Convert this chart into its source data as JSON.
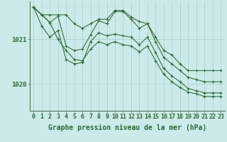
{
  "background_color": "#cceaea",
  "grid_color": "#aacccc",
  "line_color": "#2d6a2d",
  "marker_color": "#2d6a2d",
  "xlabel": "Graphe pression niveau de la mer (hPa)",
  "xlabel_fontsize": 7,
  "tick_fontsize": 6,
  "ytick_labels": [
    "1021",
    "1020"
  ],
  "ytick_values": [
    1021.0,
    1020.0
  ],
  "ylim": [
    1019.4,
    1021.85
  ],
  "xlim": [
    -0.5,
    23.5
  ],
  "xtick_values": [
    0,
    1,
    2,
    3,
    4,
    5,
    6,
    7,
    8,
    9,
    10,
    11,
    12,
    13,
    14,
    15,
    16,
    17,
    18,
    19,
    20,
    21,
    22,
    23
  ],
  "series": [
    [
      1021.72,
      1021.55,
      1021.55,
      1021.55,
      1021.55,
      1021.35,
      1021.25,
      1021.35,
      1021.45,
      1021.45,
      1021.65,
      1021.65,
      1021.5,
      1021.4,
      1021.35,
      1021.05,
      1020.75,
      1020.65,
      1020.45,
      1020.3,
      1020.3,
      1020.3,
      1020.3,
      1020.3
    ],
    [
      1021.72,
      1021.55,
      1021.38,
      1021.52,
      1020.85,
      1020.75,
      1020.78,
      1021.1,
      1021.42,
      1021.35,
      1021.62,
      1021.62,
      1021.45,
      1021.25,
      1021.35,
      1020.95,
      1020.6,
      1020.45,
      1020.3,
      1020.15,
      1020.1,
      1020.05,
      1020.05,
      1020.05
    ],
    [
      1021.72,
      1021.3,
      1021.05,
      1021.2,
      1020.55,
      1020.45,
      1020.48,
      1020.95,
      1021.15,
      1021.08,
      1021.12,
      1021.08,
      1021.05,
      1020.88,
      1021.05,
      1020.7,
      1020.35,
      1020.18,
      1020.05,
      1019.9,
      1019.85,
      1019.8,
      1019.8,
      1019.8
    ],
    [
      1021.72,
      1021.55,
      1021.38,
      1021.0,
      1020.75,
      1020.55,
      1020.52,
      1020.78,
      1020.95,
      1020.88,
      1020.95,
      1020.88,
      1020.85,
      1020.72,
      1020.85,
      1020.52,
      1020.22,
      1020.05,
      1019.92,
      1019.82,
      1019.78,
      1019.72,
      1019.72,
      1019.72
    ]
  ]
}
